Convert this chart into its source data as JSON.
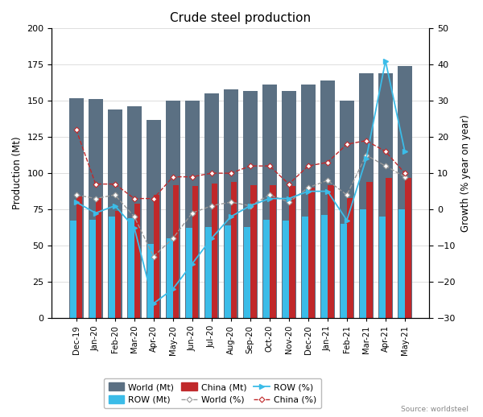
{
  "title": "Crude steel production",
  "source": "Source: worldsteel",
  "months": [
    "Dec-19",
    "Jan-20",
    "Feb-20",
    "Mar-20",
    "Apr-20",
    "May-20",
    "Jun-20",
    "Jul-20",
    "Aug-20",
    "Sep-20",
    "Oct-20",
    "Nov-20",
    "Dec-20",
    "Jan-21",
    "Feb-21",
    "Mar-21",
    "Apr-21",
    "May-21"
  ],
  "world_mt": [
    152,
    151,
    144,
    146,
    137,
    150,
    150,
    155,
    158,
    157,
    161,
    157,
    161,
    164,
    150,
    169,
    169,
    174
  ],
  "row_mt": [
    67,
    68,
    70,
    69,
    51,
    55,
    62,
    63,
    64,
    63,
    68,
    67,
    70,
    71,
    65,
    75,
    70,
    75
  ],
  "china_mt": [
    84,
    83,
    74,
    79,
    85,
    92,
    91,
    93,
    94,
    92,
    92,
    91,
    90,
    92,
    83,
    94,
    97,
    97
  ],
  "world_pct": [
    4,
    3,
    4,
    -2,
    -13,
    -8,
    -1,
    1,
    2,
    1,
    4,
    2,
    6,
    8,
    4,
    15,
    12,
    9
  ],
  "row_pct": [
    2,
    -1,
    1,
    -5,
    -26,
    -22,
    -15,
    -8,
    -2,
    1,
    3,
    3,
    5,
    5,
    -3,
    14,
    41,
    16
  ],
  "china_pct": [
    22,
    7,
    7,
    3,
    3,
    9,
    9,
    10,
    10,
    12,
    12,
    7,
    12,
    13,
    18,
    19,
    16,
    10
  ],
  "world_bar_color": "#5b7083",
  "row_bar_color": "#3bbce8",
  "china_bar_color": "#c0282a",
  "world_pct_color": "#999999",
  "row_pct_color": "#3bbce8",
  "china_pct_color": "#c0282a",
  "ylim_left": [
    0,
    200
  ],
  "ylim_right": [
    -30,
    50
  ],
  "yticks_left": [
    0,
    25,
    50,
    75,
    100,
    125,
    150,
    175,
    200
  ],
  "yticks_right": [
    -30,
    -20,
    -10,
    0,
    10,
    20,
    30,
    40,
    50
  ],
  "ylabel_left": "Production (Mt)",
  "ylabel_right": "Growth (% year on year)",
  "figsize": [
    6.0,
    5.18
  ],
  "dpi": 100
}
